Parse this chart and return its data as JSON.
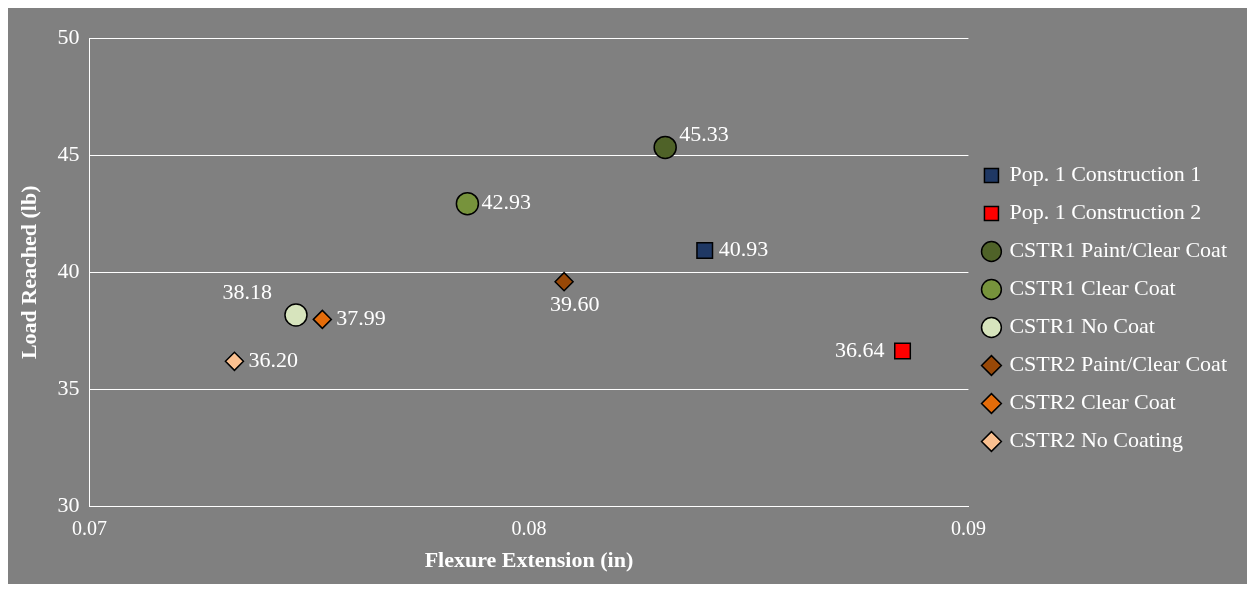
{
  "chart_data": {
    "type": "scatter",
    "xlabel": "Flexure Extension (in)",
    "ylabel": "Load Reached (lb)",
    "xlim": [
      0.07,
      0.09
    ],
    "xticks": [
      0.07,
      0.08,
      0.09
    ],
    "ylim": [
      30,
      50
    ],
    "yticks": [
      30,
      35,
      40,
      45,
      50
    ],
    "grid": "y",
    "legend": "right",
    "series": [
      {
        "name": "Pop. 1 Construction 1",
        "color": "#1f3864",
        "marker": "square",
        "x": [
          0.084
        ],
        "values": [
          40.93
        ],
        "value_labels": [
          "40.93"
        ]
      },
      {
        "name": "Pop. 1 Construction 2",
        "color": "#ff0000",
        "marker": "square",
        "x": [
          0.0885
        ],
        "values": [
          36.64
        ],
        "value_labels": [
          "36.64"
        ]
      },
      {
        "name": "CSTR1 Paint/Clear Coat",
        "color": "#4f6228",
        "marker": "circle",
        "x": [
          0.0831
        ],
        "values": [
          45.33
        ],
        "value_labels": [
          "45.33"
        ]
      },
      {
        "name": "CSTR1 Clear Coat",
        "color": "#77933c",
        "marker": "circle",
        "x": [
          0.0786
        ],
        "values": [
          42.93
        ],
        "value_labels": [
          "42.93"
        ]
      },
      {
        "name": "CSTR1 No Coat",
        "color": "#d7e4bd",
        "marker": "circle",
        "x": [
          0.0747
        ],
        "values": [
          38.18
        ],
        "value_labels": [
          "38.18"
        ]
      },
      {
        "name": "CSTR2 Paint/Clear Coat",
        "color": "#984807",
        "marker": "diamond",
        "x": [
          0.0808
        ],
        "values": [
          39.6
        ],
        "value_labels": [
          "39.60"
        ]
      },
      {
        "name": "CSTR2 Clear Coat",
        "color": "#e46c0a",
        "marker": "diamond",
        "x": [
          0.0753
        ],
        "values": [
          37.99
        ],
        "value_labels": [
          "37.99"
        ]
      },
      {
        "name": "CSTR2 No Coating",
        "color": "#fac090",
        "marker": "diamond",
        "x": [
          0.0733
        ],
        "values": [
          36.2
        ],
        "value_labels": [
          "36.20"
        ]
      }
    ]
  }
}
